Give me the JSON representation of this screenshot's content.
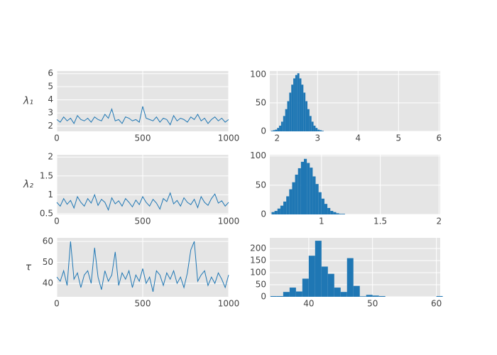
{
  "chart_data": [
    {
      "type": "line",
      "ylabel": "λ₁",
      "color": "#1f77b4",
      "x": [
        0,
        20,
        40,
        60,
        80,
        100,
        120,
        140,
        160,
        180,
        200,
        220,
        240,
        260,
        280,
        300,
        320,
        340,
        360,
        380,
        400,
        420,
        440,
        460,
        480,
        500,
        520,
        540,
        560,
        580,
        600,
        620,
        640,
        660,
        680,
        700,
        720,
        740,
        760,
        780,
        800,
        820,
        840,
        860,
        880,
        900,
        920,
        940,
        960,
        980,
        1000
      ],
      "values": [
        2.5,
        2.3,
        2.7,
        2.4,
        2.6,
        2.2,
        2.8,
        2.5,
        2.4,
        2.6,
        2.3,
        2.7,
        2.5,
        2.4,
        2.9,
        2.6,
        3.3,
        2.4,
        2.5,
        2.2,
        2.7,
        2.6,
        2.4,
        2.5,
        2.3,
        3.5,
        2.6,
        2.5,
        2.4,
        2.7,
        2.3,
        2.6,
        2.5,
        2.1,
        2.8,
        2.4,
        2.6,
        2.5,
        2.3,
        2.7,
        2.5,
        2.9,
        2.4,
        2.6,
        2.2,
        2.5,
        2.7,
        2.4,
        2.6,
        2.3,
        2.5
      ],
      "xlim": [
        0,
        1000
      ],
      "xticks": [
        0,
        500,
        1000
      ],
      "ylim": [
        1.6,
        6.2
      ],
      "yticks": [
        2,
        3,
        4,
        5,
        6
      ],
      "grid": true
    },
    {
      "type": "histogram",
      "color": "#1f77b4",
      "bins": [
        1.85,
        1.9,
        1.95,
        2.0,
        2.05,
        2.1,
        2.15,
        2.2,
        2.25,
        2.3,
        2.35,
        2.4,
        2.45,
        2.5,
        2.55,
        2.6,
        2.65,
        2.7,
        2.75,
        2.8,
        2.85,
        2.9,
        2.95,
        3.0,
        3.05,
        3.1,
        3.15
      ],
      "values": [
        1,
        2,
        3,
        6,
        10,
        17,
        27,
        39,
        53,
        68,
        82,
        93,
        99,
        102,
        93,
        82,
        68,
        53,
        39,
        27,
        17,
        10,
        6,
        3,
        2,
        1
      ],
      "xlim": [
        1.82,
        6.03
      ],
      "xticks": [
        2,
        3,
        4,
        5,
        6
      ],
      "ylim": [
        0,
        106
      ],
      "yticks": [
        0,
        50,
        100
      ],
      "grid": true
    },
    {
      "type": "line",
      "ylabel": "λ₂",
      "color": "#1f77b4",
      "x": [
        0,
        20,
        40,
        60,
        80,
        100,
        120,
        140,
        160,
        180,
        200,
        220,
        240,
        260,
        280,
        300,
        320,
        340,
        360,
        380,
        400,
        420,
        440,
        460,
        480,
        500,
        520,
        540,
        560,
        580,
        600,
        620,
        640,
        660,
        680,
        700,
        720,
        740,
        760,
        780,
        800,
        820,
        840,
        860,
        880,
        900,
        920,
        940,
        960,
        980,
        1000
      ],
      "values": [
        0.8,
        0.7,
        0.9,
        0.75,
        0.85,
        0.65,
        0.95,
        0.8,
        0.7,
        0.9,
        0.78,
        1.0,
        0.72,
        0.88,
        0.8,
        0.6,
        0.92,
        0.76,
        0.84,
        0.7,
        0.9,
        0.8,
        0.68,
        0.86,
        0.74,
        0.95,
        0.8,
        0.7,
        0.88,
        0.78,
        0.62,
        0.9,
        0.82,
        1.05,
        0.76,
        0.85,
        0.7,
        0.92,
        0.8,
        0.74,
        0.88,
        0.66,
        0.95,
        0.8,
        0.72,
        0.9,
        1.02,
        0.78,
        0.84,
        0.7,
        0.8
      ],
      "xlim": [
        0,
        1000
      ],
      "xticks": [
        0,
        500,
        1000
      ],
      "ylim": [
        0.48,
        2.06
      ],
      "yticks": [
        0.5,
        1,
        1.5,
        2
      ],
      "grid": true
    },
    {
      "type": "histogram",
      "color": "#1f77b4",
      "bins": [
        0.575,
        0.6,
        0.625,
        0.65,
        0.675,
        0.7,
        0.725,
        0.75,
        0.775,
        0.8,
        0.825,
        0.85,
        0.875,
        0.9,
        0.925,
        0.95,
        0.975,
        1.0,
        1.025,
        1.05,
        1.075,
        1.1,
        1.125,
        1.15,
        1.175,
        1.2
      ],
      "values": [
        4,
        6,
        10,
        15,
        22,
        31,
        43,
        55,
        68,
        79,
        90,
        95,
        88,
        80,
        65,
        52,
        38,
        27,
        18,
        11,
        6,
        4,
        2,
        1,
        1
      ],
      "xlim": [
        0.56,
        2.01
      ],
      "xticks": [
        1,
        1.5,
        2
      ],
      "ylim": [
        0,
        102
      ],
      "yticks": [
        0,
        50,
        100
      ],
      "grid": true
    },
    {
      "type": "line",
      "ylabel": "τ",
      "color": "#1f77b4",
      "x": [
        0,
        20,
        40,
        60,
        80,
        100,
        120,
        140,
        160,
        180,
        200,
        220,
        240,
        260,
        280,
        300,
        320,
        340,
        360,
        380,
        400,
        420,
        440,
        460,
        480,
        500,
        520,
        540,
        560,
        580,
        600,
        620,
        640,
        660,
        680,
        700,
        720,
        740,
        760,
        780,
        800,
        820,
        840,
        860,
        880,
        900,
        920,
        940,
        960,
        980,
        1000
      ],
      "values": [
        43,
        41,
        46,
        39,
        60,
        42,
        45,
        38,
        44,
        46,
        40,
        57,
        43,
        37,
        46,
        41,
        44,
        55,
        39,
        45,
        42,
        46,
        38,
        44,
        41,
        47,
        40,
        43,
        36,
        46,
        44,
        39,
        45,
        42,
        46,
        40,
        43,
        38,
        45,
        56,
        60,
        41,
        44,
        46,
        39,
        43,
        40,
        45,
        42,
        38,
        44
      ],
      "xlim": [
        0,
        1000
      ],
      "xticks": [
        0,
        500,
        1000
      ],
      "ylim": [
        33.6,
        61.7
      ],
      "yticks": [
        40,
        50,
        60
      ],
      "grid": true
    },
    {
      "type": "histogram",
      "color": "#1f77b4",
      "bins": [
        34,
        35,
        36,
        37,
        38,
        39,
        40,
        41,
        42,
        43,
        44,
        45,
        46,
        47,
        48,
        49,
        50,
        51,
        52,
        53,
        54,
        55,
        56,
        57,
        58,
        59,
        60,
        61
      ],
      "values": [
        3,
        3,
        20,
        38,
        22,
        75,
        170,
        232,
        125,
        95,
        38,
        20,
        160,
        45,
        2,
        8,
        5,
        3,
        0,
        0,
        0,
        0,
        0,
        0,
        0,
        0,
        3
      ],
      "xlim": [
        33.9,
        60.6
      ],
      "xticks": [
        40,
        50,
        60
      ],
      "ylim": [
        0,
        244
      ],
      "yticks": [
        0,
        50,
        100,
        150,
        200
      ],
      "grid": true
    }
  ]
}
